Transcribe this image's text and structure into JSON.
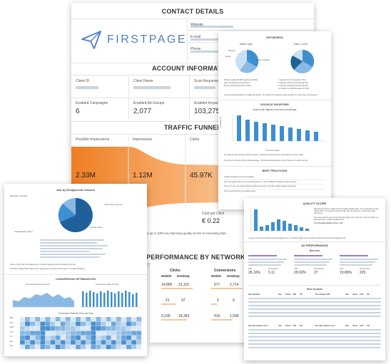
{
  "colors": {
    "accent": "#f28a30",
    "blue": "#3d8fcf",
    "logo": "#4a7fc1"
  },
  "main_report": {
    "contact_details_title": "CONTACT DETAILS",
    "logo_text": "FIRSTPAGE",
    "contact_labels": [
      "Website",
      "E-mail",
      "Phone"
    ],
    "account_title": "ACCOUNT INFORMATION",
    "account_fields": [
      {
        "label": "Client ID",
        "value": ""
      },
      {
        "label": "Client Name",
        "value": ""
      },
      {
        "label": "Scan Requested",
        "value": ""
      }
    ],
    "account_counts": [
      {
        "label": "Enabled Campaigns",
        "value": "6"
      },
      {
        "label": "Enabled Ad Groups",
        "value": "2,077"
      },
      {
        "label": "Enabled Keywords",
        "value": "103,275"
      }
    ],
    "funnel_title": "TRAFFIC FUNNEL",
    "funnel": [
      {
        "label": "Possible Impressions",
        "value": "2.33M"
      },
      {
        "label": "Impressions",
        "value": "1.12M"
      },
      {
        "label": "Clicks",
        "value": "45.97K"
      }
    ],
    "cost": {
      "label": "Cost per Click",
      "value": "€ 0.22"
    },
    "improve_note": "by up to 100% by improving quality scores or increasing bids.",
    "network_title": "PERFORMANCE BY NETWORK",
    "network_headers": {
      "clicks": "Clicks",
      "conversions": "Conversions",
      "mobile": "Mobile",
      "desktop": "Desktop"
    },
    "network_rows": [
      {
        "clicks_mobile": "14,865",
        "clicks_desktop": "31,116",
        "conv_mobile": "677",
        "conv_desktop": "2,714"
      },
      {
        "clicks_mobile": "21",
        "clicks_desktop": "97",
        "conv_mobile": "0",
        "conv_desktop": "0"
      },
      {
        "clicks_mobile": "9,190",
        "clicks_desktop": "18,363",
        "conv_mobile": "416",
        "conv_desktop": "1,558"
      }
    ]
  },
  "keywords_card": {
    "title": "KEYWORDS",
    "pie1_title": "Match Type",
    "pie2_title": "Token Count",
    "pie1_labels": [
      "Phrase",
      "Exact",
      "Broad modifier"
    ],
    "legend_left": [
      "Broad modifier 48,387 keywords (46.9%)",
      "Exact 36,254 keywords (35.1%)",
      "Phrase 18,634 keywords (18.0%)"
    ],
    "legend_right": [
      "1 token(s) 8,127 keywords (7.9%)",
      "2 token(s) 43,612 keywords (42.2%)",
      "3 token(s) 34,008 keywords (32.9%)",
      "4+ token(s) 17,528 keywords (17.0%)"
    ],
    "note": "Some keywords appear in multiple ad groups. You should not target the same keyword in more than one ad group.",
    "shopping_title": "GOOGLE SHOPPING",
    "shopping_chart_title": "Brands with highest conversion percentage",
    "shopping_ylabel": "Conversion %",
    "shopping_legend": "Conversion Rate",
    "shopping_notes": [
      "The brand in best performs above average. Consider increasing bids on this brand to increase traffic.",
      "The brand in lowest performs below average. Consider decreasing bids on this brand to increase revenue."
    ],
    "best_practices_title": "BEST PRACTICES",
    "best_practices": [
      "Google Shopping spend is increasing.",
      "Some ad groups have more than 50 keywords. It can be difficult to maintain large ad groups.",
      "There are some ad groups without negative keywords. Consider adding negative keywords.",
      "Some keywords have low quality scores."
    ]
  },
  "quality_card": {
    "title": "QUALITY SCORE",
    "paragraphs": [
      "Each keyword gets a rating out of 10 called Quality Score. The components of the Quality Score are expected click-through rate, ad relevance, and landing page experience.",
      "The more relevant your ads and landing pages are to the user, the more likely it is that you'll have a higher Quality Score.",
      "Your Average Quality Score: 4.95"
    ],
    "note": "A large number of keywords have low quality scores. Consider adding more specific keywords to boost overall quality score.",
    "ad_perf_title": "AD PERFORMANCE",
    "best_ads_title": "Best Ads",
    "best_ads": [
      {
        "ctr": "26.16%",
        "conv": "5.11",
        "ctr2": "29.63%",
        "conv2": "27"
      },
      {
        "ctr": "29.63%",
        "conv": "",
        "ctr2": "29.63%",
        "conv2": "27"
      },
      {
        "ctr": "19.89%",
        "conv": "",
        "ctr2": "19.89%",
        "conv2": "225"
      }
    ],
    "ad_stat_labels": [
      "CTR",
      "Conversions"
    ],
    "best_parts_title": "Best Ad parts",
    "table_headers": [
      "Best Headline",
      "Imp.",
      "Clicks",
      "CTR",
      "CR",
      "Best Display URL",
      "Imp.",
      "Clicks",
      "CTR",
      "CR"
    ],
    "table2_headers": [
      "Best Description Line 1",
      "Imp.",
      "Clicks",
      "CTR",
      "CR",
      "Best Description Line 2",
      "Imp.",
      "Clicks",
      "CTR",
      "CR"
    ]
  },
  "disapproval_card": {
    "title": "Ads by Disapproval reasons",
    "pie_labels": [
      "Destination mismatch",
      "Trademarks in ad text",
      "pending review",
      "Unacceptable spacing"
    ],
    "notes": [
      "Some of your ads are disapproved, consider reviewing and resubmitting the ads.",
      "Consider adding brand data to your ad groups to improve performance in Google Shopping."
    ],
    "conv_title": "CONVERSION OPTIMIZATION",
    "conv_hour_title": "Conversion Rate by Hour",
    "conv_day_title": "Conversion Rate by Day",
    "heatmap_title": "Conversion Rate By Hour and Day",
    "days": [
      "Mon",
      "Tue",
      "Wed",
      "Thu",
      "Fri",
      "Sat",
      "Sun"
    ]
  }
}
